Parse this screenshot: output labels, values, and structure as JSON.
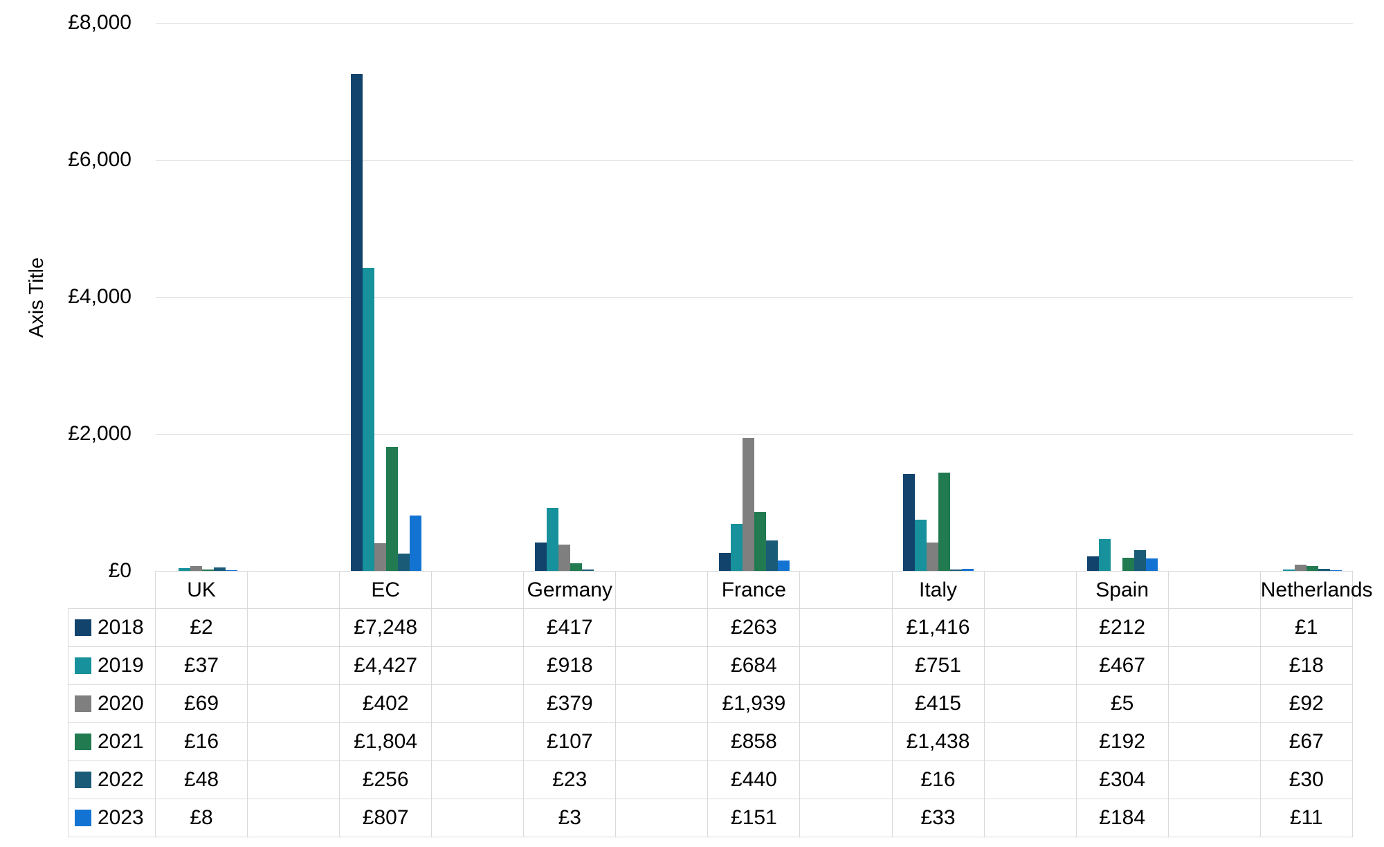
{
  "chart_data": {
    "type": "bar",
    "ylabel": "Axis Title",
    "currency_prefix": "£",
    "categories": [
      "UK",
      "EC",
      "Germany",
      "France",
      "Italy",
      "Spain",
      "Netherlands"
    ],
    "series": [
      {
        "name": "2018",
        "color": "#12436D",
        "values": [
          2,
          7248,
          417,
          263,
          1416,
          212,
          1
        ],
        "labels": [
          "£2",
          "£7,248",
          "£417",
          "£263",
          "£1,416",
          "£212",
          "£1"
        ]
      },
      {
        "name": "2019",
        "color": "#17919B",
        "values": [
          37,
          4427,
          918,
          684,
          751,
          467,
          18
        ],
        "labels": [
          "£37",
          "£4,427",
          "£918",
          "£684",
          "£751",
          "£467",
          "£18"
        ]
      },
      {
        "name": "2020",
        "color": "#7F7F7F",
        "values": [
          69,
          402,
          379,
          1939,
          415,
          5,
          92
        ],
        "labels": [
          "£69",
          "£402",
          "£379",
          "£1,939",
          "£415",
          "£5",
          "£92"
        ]
      },
      {
        "name": "2021",
        "color": "#217A50",
        "values": [
          16,
          1804,
          107,
          858,
          1438,
          192,
          67
        ],
        "labels": [
          "£16",
          "£1,804",
          "£107",
          "£858",
          "£1,438",
          "£192",
          "£67"
        ]
      },
      {
        "name": "2022",
        "color": "#1A5C78",
        "values": [
          48,
          256,
          23,
          440,
          16,
          304,
          30
        ],
        "labels": [
          "£48",
          "£256",
          "£23",
          "£440",
          "£16",
          "£304",
          "£30"
        ]
      },
      {
        "name": "2023",
        "color": "#1373D3",
        "values": [
          8,
          807,
          3,
          151,
          33,
          184,
          11
        ],
        "labels": [
          "£8",
          "£807",
          "£3",
          "£151",
          "£33",
          "£184",
          "£11"
        ]
      }
    ],
    "ylim": [
      0,
      8000
    ],
    "ytick_step": 2000,
    "ytick_labels": [
      "£0",
      "£2,000",
      "£4,000",
      "£6,000",
      "£8,000"
    ],
    "grid": "horizontal-only",
    "gridline_color": "#D9D9D9",
    "legend_position": "data-table-left-keys",
    "layout_note_spacer_slots": "empty category slot between each labelled country column"
  }
}
